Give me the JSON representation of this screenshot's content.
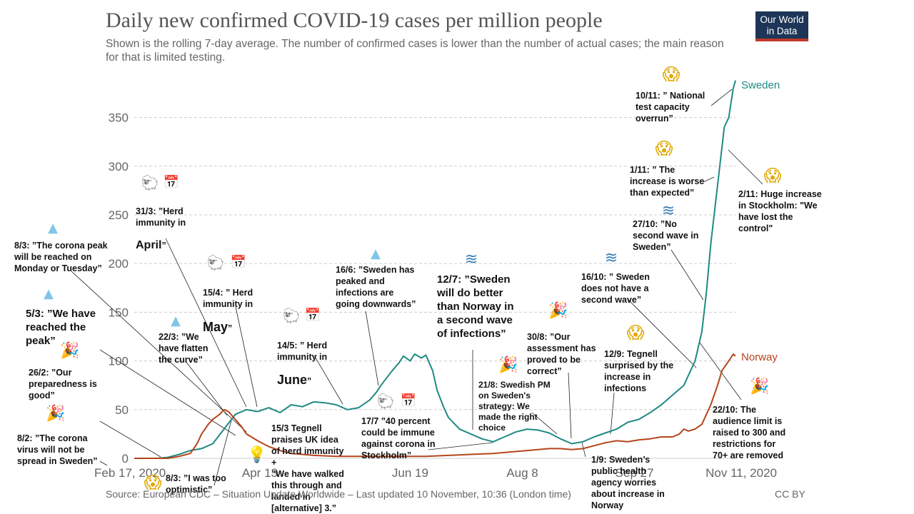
{
  "header": {
    "title": "Daily new confirmed COVID-19 cases per million people",
    "subtitle": "Shown is the rolling 7-day average. The number of confirmed cases is lower than the number of actual cases; the main reason for that is limited testing.",
    "logo_line1": "Our World",
    "logo_line2": "in Data"
  },
  "footer": {
    "source": "Source: European CDC – Situation Update Worldwide – Last updated 10 November, 10:36 (London time)",
    "license": "CC BY"
  },
  "chart_data": {
    "type": "line",
    "title": "Daily new confirmed COVID-19 cases per million people",
    "x_start": "Feb 17, 2020",
    "x_end": "Nov 11, 2020",
    "xlim_days": [
      0,
      268
    ],
    "ylim": [
      0,
      390
    ],
    "yticks": [
      0,
      50,
      100,
      150,
      200,
      250,
      300,
      350
    ],
    "xticks": [
      {
        "day": 0,
        "label": "Feb 17, 2020"
      },
      {
        "day": 56,
        "label": "Apr 13"
      },
      {
        "day": 123,
        "label": "Jun 19"
      },
      {
        "day": 173,
        "label": "Aug 8"
      },
      {
        "day": 223,
        "label": "Sep 27"
      },
      {
        "day": 268,
        "label": "Nov 11, 2020"
      }
    ],
    "series": [
      {
        "name": "Sweden",
        "color": "#1f8a82",
        "x": [
          0,
          10,
          15,
          20,
          25,
          30,
          35,
          40,
          45,
          50,
          55,
          60,
          65,
          70,
          75,
          80,
          85,
          90,
          95,
          100,
          105,
          108,
          110,
          115,
          118,
          120,
          123,
          125,
          128,
          130,
          133,
          135,
          138,
          140,
          145,
          150,
          155,
          160,
          165,
          170,
          175,
          180,
          185,
          190,
          195,
          200,
          205,
          210,
          215,
          220,
          225,
          230,
          235,
          240,
          245,
          250,
          253,
          255,
          257,
          259,
          261,
          263,
          265,
          266,
          267,
          268
        ],
        "values": [
          0,
          0,
          1,
          4,
          8,
          10,
          15,
          30,
          45,
          50,
          48,
          52,
          47,
          55,
          53,
          58,
          57,
          55,
          50,
          52,
          60,
          68,
          75,
          90,
          98,
          105,
          100,
          107,
          103,
          106,
          90,
          70,
          52,
          42,
          30,
          25,
          20,
          17,
          22,
          27,
          30,
          29,
          26,
          20,
          15,
          17,
          22,
          26,
          30,
          37,
          40,
          47,
          55,
          65,
          75,
          100,
          130,
          170,
          220,
          260,
          300,
          340,
          350,
          365,
          380,
          388
        ]
      },
      {
        "name": "Norway",
        "color": "#b5451b",
        "x": [
          0,
          15,
          20,
          25,
          28,
          30,
          33,
          35,
          38,
          40,
          42,
          45,
          48,
          50,
          55,
          60,
          65,
          70,
          75,
          80,
          90,
          100,
          110,
          120,
          130,
          140,
          150,
          160,
          170,
          180,
          185,
          190,
          195,
          200,
          205,
          210,
          215,
          220,
          225,
          230,
          235,
          240,
          243,
          245,
          247,
          250,
          253,
          255,
          257,
          260,
          262,
          265,
          267,
          268
        ],
        "values": [
          0,
          0,
          2,
          5,
          15,
          25,
          35,
          40,
          45,
          50,
          48,
          40,
          32,
          25,
          18,
          12,
          8,
          5,
          4,
          3,
          2,
          2,
          2,
          2,
          2,
          3,
          4,
          5,
          7,
          9,
          10,
          10,
          9,
          10,
          13,
          16,
          18,
          17,
          19,
          20,
          22,
          22,
          25,
          30,
          28,
          30,
          35,
          45,
          55,
          75,
          90,
          100,
          107,
          105
        ]
      }
    ]
  },
  "annotations": [
    {
      "id": "a0802",
      "text": "8/2: ”The corona\nvirus will not be\nspread in Sweden”"
    },
    {
      "id": "a2602",
      "text": "26/2: ”Our\npreparedness is\ngood”"
    },
    {
      "id": "a0503",
      "text": "5/3: ”We have\nreached the\npeak”"
    },
    {
      "id": "a0803peak",
      "text": "8/3: ”The corona peak\nwill be reached on\nMonday or Tuesday”"
    },
    {
      "id": "a0803opt",
      "text": "8/3: ”I was too\noptimistic”"
    },
    {
      "id": "a2203",
      "text": "22/3: ”We\nhave flatten\nthe curve”"
    },
    {
      "id": "a3103_pre",
      "text": "31/3: ”Herd\nimmunity in"
    },
    {
      "id": "a3103_em",
      "text": "April"
    },
    {
      "id": "a3103_post",
      "text": "”"
    },
    {
      "id": "a1504_pre",
      "text": "15/4: ” Herd\nimmunity in"
    },
    {
      "id": "a1504_em",
      "text": "May"
    },
    {
      "id": "a1504_post",
      "text": "”"
    },
    {
      "id": "a1503",
      "text": "15/3 Tegnell\npraises UK idea\nof herd immunity\n+\n”We have walked\nthis through and\nlanded in\n[alternative] 3.”"
    },
    {
      "id": "a1405_pre",
      "text": "14/5: ” Herd\nimmunity in"
    },
    {
      "id": "a1405_em",
      "text": "June"
    },
    {
      "id": "a1405_post",
      "text": "”"
    },
    {
      "id": "a1606",
      "text": "16/6: ”Sweden has\npeaked and\ninfections are\ngoing downwards”"
    },
    {
      "id": "a1707",
      "text": "17/7 ”40 percent\ncould be immune\nagainst corona in\nStockholm”"
    },
    {
      "id": "a1207",
      "text": "12/7: ”Sweden\nwill do better\nthan Norway in\na second wave\nof infections”"
    },
    {
      "id": "a2108",
      "text": "21/8: Swedish PM\non Sweden's\nstrategy: We\nmade the right\nchoice"
    },
    {
      "id": "a3008",
      "text": "30/8: ”Our\nassessment  has\nproved to be\ncorrect”"
    },
    {
      "id": "a0109",
      "text": "1/9: Sweden’s\npublic health\nagency worries\nabout increase in\nNorway"
    },
    {
      "id": "a1209",
      "text": "12/9: Tegnell\nsurprised  by the\nincrease in\ninfections"
    },
    {
      "id": "a1610",
      "text": "16/10: ” Sweden\ndoes not have a\nsecond wave”"
    },
    {
      "id": "a2710",
      "text": "27/10: ”No\nsecond wave in\nSweden”"
    },
    {
      "id": "a0111",
      "text": "1/11: ” The\nincrease is worse\nthan expected”"
    },
    {
      "id": "a1011",
      "text": "10/11: ” National\ntest capacity\noverrun”"
    },
    {
      "id": "a0211",
      "text": "2/11: Huge increase\nin Stockholm: \"We\nhave lost the\ncontrol\""
    },
    {
      "id": "a2210",
      "text": "22/10: The\naudience limit is\nraised to 300 and\nrestrictions  for\n70+ are removed"
    }
  ],
  "icons": {
    "mountain": "▲",
    "wave": "≋",
    "party": "🎉",
    "scream": "😱",
    "sheep": "🐑",
    "calendar": "📅",
    "bulb": "💡"
  },
  "colors": {
    "sweden": "#1f8a82",
    "norway": "#b5451b",
    "grid": "#cccccc",
    "axis_text": "#666666"
  }
}
